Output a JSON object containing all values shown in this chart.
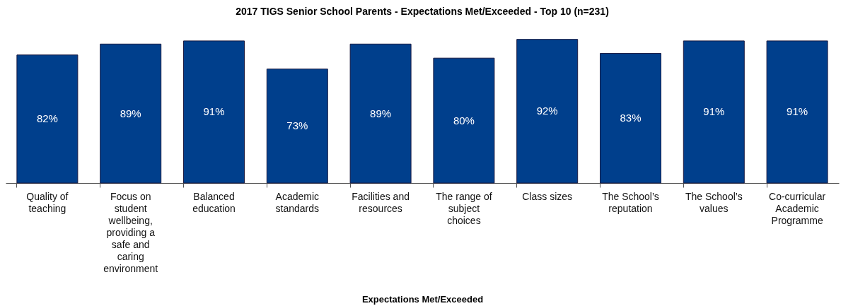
{
  "chart_data": {
    "type": "bar",
    "title": "2017 TIGS Senior School Parents - Expectations Met/Exceeded - Top 10 (n=231)",
    "xlabel": "Expectations Met/Exceeded",
    "categories": [
      "Quality of teaching",
      "Focus on student wellbeing, providing a safe and caring environment",
      "Balanced education",
      "Academic standards",
      "Facilities and resources",
      "The range of subject choices",
      "Class sizes",
      "The School’s reputation",
      "The School’s values",
      "Co-curricular Academic Programme"
    ],
    "values": [
      82,
      89,
      91,
      73,
      89,
      80,
      92,
      83,
      91,
      91
    ],
    "value_labels": [
      "82%",
      "89%",
      "91%",
      "73%",
      "89%",
      "80%",
      "92%",
      "83%",
      "91%",
      "91%"
    ],
    "color": "#003f8c",
    "tick_labels": "x"
  }
}
